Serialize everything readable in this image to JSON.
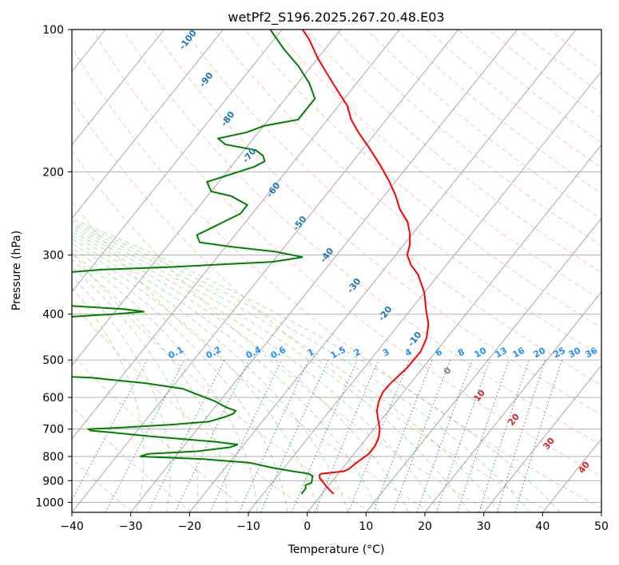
{
  "chart_data": {
    "type": "skew-t",
    "title": "wetPf2_S196.2025.267.20.48.E03",
    "xlabel": "Temperature (°C)",
    "ylabel": "Pressure (hPa)",
    "xlim": [
      -40,
      50
    ],
    "ylim": [
      1050,
      100
    ],
    "y_scale": "log",
    "grid": true,
    "x_ticks": [
      "−40",
      "−30",
      "−20",
      "−10",
      "0",
      "10",
      "20",
      "30",
      "40",
      "50"
    ],
    "y_ticks": [
      "100",
      "200",
      "300",
      "400",
      "500",
      "600",
      "700",
      "800",
      "900",
      "1000"
    ],
    "series": [
      {
        "color": "#ff0000",
        "points": [
          [
            960,
            2.0
          ],
          [
            930,
            0.0
          ],
          [
            905,
            -1.5
          ],
          [
            890,
            -2.5
          ],
          [
            875,
            -3.0
          ],
          [
            870,
            -2.8
          ],
          [
            865,
            -1.0
          ],
          [
            860,
            0.5
          ],
          [
            855,
            1.0
          ],
          [
            845,
            1.3
          ],
          [
            830,
            1.5
          ],
          [
            810,
            2.0
          ],
          [
            790,
            2.5
          ],
          [
            760,
            2.5
          ],
          [
            730,
            2.0
          ],
          [
            700,
            1.0
          ],
          [
            670,
            -0.5
          ],
          [
            640,
            -2.0
          ],
          [
            610,
            -3.0
          ],
          [
            585,
            -3.5
          ],
          [
            560,
            -3.4
          ],
          [
            520,
            -2.7
          ],
          [
            480,
            -2.6
          ],
          [
            450,
            -3.4
          ],
          [
            420,
            -5.0
          ],
          [
            390,
            -7.5
          ],
          [
            360,
            -10.0
          ],
          [
            330,
            -13.5
          ],
          [
            315,
            -16.0
          ],
          [
            300,
            -18.0
          ],
          [
            285,
            -19.0
          ],
          [
            270,
            -20.5
          ],
          [
            255,
            -22.5
          ],
          [
            240,
            -25.5
          ],
          [
            225,
            -28.0
          ],
          [
            210,
            -31.0
          ],
          [
            195,
            -34.5
          ],
          [
            180,
            -38.5
          ],
          [
            165,
            -43.0
          ],
          [
            155,
            -46.0
          ],
          [
            145,
            -48.5
          ],
          [
            130,
            -54.0
          ],
          [
            115,
            -60.0
          ],
          [
            105,
            -64.0
          ],
          [
            100,
            -66.5
          ]
        ]
      },
      {
        "color": "#008000",
        "points": [
          [
            960,
            -3.5
          ],
          [
            935,
            -3.5
          ],
          [
            920,
            -4.0
          ],
          [
            910,
            -3.3
          ],
          [
            900,
            -3.5
          ],
          [
            890,
            -3.8
          ],
          [
            880,
            -4.0
          ],
          [
            870,
            -5.0
          ],
          [
            860,
            -8.0
          ],
          [
            845,
            -12.0
          ],
          [
            825,
            -16.5
          ],
          [
            810,
            -25.0
          ],
          [
            800,
            -36.0
          ],
          [
            790,
            -35.0
          ],
          [
            780,
            -27.0
          ],
          [
            765,
            -22.0
          ],
          [
            755,
            -21.0
          ],
          [
            745,
            -25.0
          ],
          [
            725,
            -37.0
          ],
          [
            712,
            -44.0
          ],
          [
            705,
            -48.0
          ],
          [
            700,
            -48.5
          ],
          [
            695,
            -43.0
          ],
          [
            685,
            -35.0
          ],
          [
            675,
            -29.0
          ],
          [
            660,
            -27.0
          ],
          [
            650,
            -26.0
          ],
          [
            640,
            -26.0
          ],
          [
            630,
            -28.0
          ],
          [
            610,
            -31.0
          ],
          [
            590,
            -35.0
          ],
          [
            575,
            -38.0
          ],
          [
            560,
            -45.0
          ],
          [
            545,
            -55.0
          ],
          [
            535,
            -70.0
          ],
          [
            410,
            -73.0
          ],
          [
            400,
            -60.0
          ],
          [
            395,
            -55.0
          ],
          [
            390,
            -59.0
          ],
          [
            380,
            -75.0
          ],
          [
            330,
            -78.0
          ],
          [
            322,
            -68.0
          ],
          [
            318,
            -57.0
          ],
          [
            310,
            -40.0
          ],
          [
            303,
            -35.5
          ],
          [
            295,
            -41.0
          ],
          [
            288,
            -49.0
          ],
          [
            282,
            -55.0
          ],
          [
            272,
            -56.5
          ],
          [
            260,
            -54.5
          ],
          [
            245,
            -52.0
          ],
          [
            235,
            -52.0
          ],
          [
            225,
            -56.0
          ],
          [
            220,
            -60.0
          ],
          [
            210,
            -62.0
          ],
          [
            200,
            -58.0
          ],
          [
            195,
            -56.0
          ],
          [
            190,
            -55.0
          ],
          [
            185,
            -56.0
          ],
          [
            180,
            -58.0
          ],
          [
            175,
            -64.0
          ],
          [
            170,
            -66.0
          ],
          [
            165,
            -62.0
          ],
          [
            160,
            -60.0
          ],
          [
            155,
            -55.0
          ],
          [
            140,
            -55.0
          ],
          [
            130,
            -58.0
          ],
          [
            120,
            -62.0
          ],
          [
            110,
            -67.0
          ],
          [
            100,
            -72.0
          ]
        ]
      }
    ],
    "overlays": {
      "isotherms": {
        "color": "#888888"
      },
      "dry_adiabats": {
        "color": "#ff7f50"
      },
      "moist_adiabats": {
        "color": "#2ca02c"
      },
      "mixing_ratio": {
        "color": "#1f77b4",
        "label_color": "#1e90ff",
        "labels": [
          "0.1",
          "0.2",
          "0.4",
          "0.6",
          "1",
          "1.5",
          "2",
          "3",
          "4",
          "6",
          "8",
          "10",
          "13",
          "16",
          "20",
          "25",
          "30",
          "36"
        ]
      },
      "hodograph_labels": {
        "blue": {
          "color": "#1f77b4",
          "labels": [
            "-100",
            "-90",
            "-80",
            "-70",
            "-60",
            "-50",
            "-40",
            "-30",
            "-20",
            "-10"
          ]
        },
        "red": {
          "color": "#d62728",
          "labels": [
            "10",
            "20",
            "30",
            "40"
          ]
        },
        "gray": {
          "color": "#808080",
          "labels": [
            "0"
          ]
        }
      }
    }
  }
}
